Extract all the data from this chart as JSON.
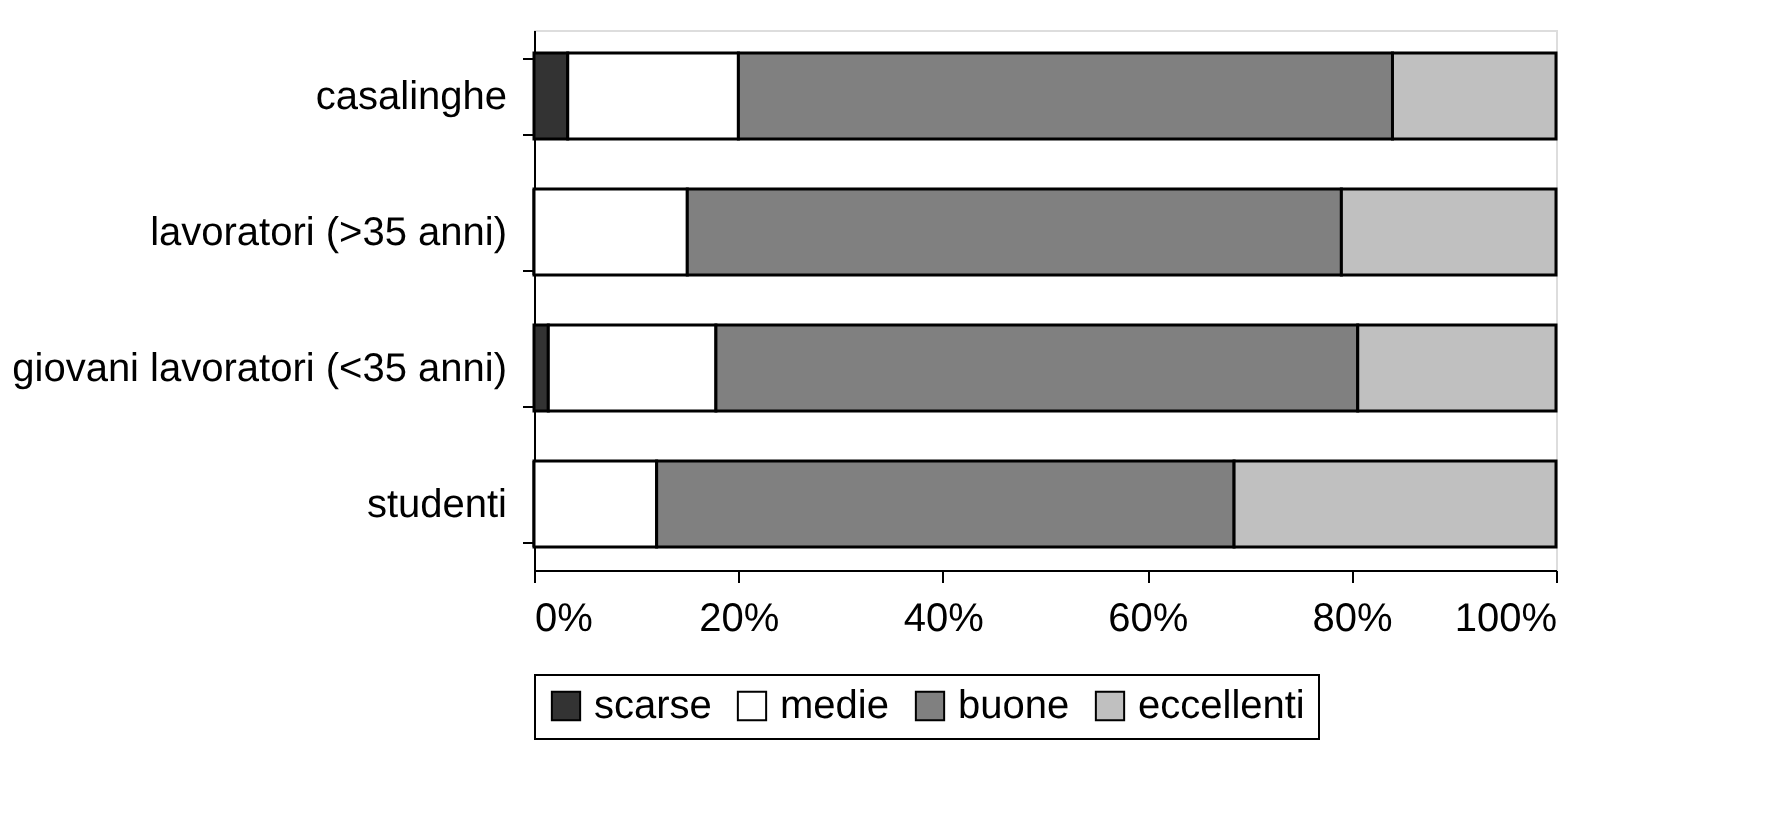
{
  "chart_data": {
    "type": "bar",
    "orientation": "horizontal",
    "stacked": true,
    "categories": [
      "casalinghe",
      "lavoratori (>35 anni)",
      "giovani lavoratori (<35 anni)",
      "studenti"
    ],
    "series": [
      {
        "name": "scarse",
        "color": "#333333",
        "values": [
          3.3,
          0,
          1.4,
          0
        ]
      },
      {
        "name": "medie",
        "color": "#ffffff",
        "values": [
          16.7,
          15,
          16.4,
          12
        ]
      },
      {
        "name": "buone",
        "color": "#808080",
        "values": [
          64,
          64,
          62.8,
          56.5
        ]
      },
      {
        "name": "eccellenti",
        "color": "#c0c0c0",
        "values": [
          16,
          21,
          19.4,
          31.5
        ]
      }
    ],
    "xlim": [
      0,
      100
    ],
    "xticks": [
      {
        "value": 0,
        "label": "0%"
      },
      {
        "value": 20,
        "label": "20%"
      },
      {
        "value": 40,
        "label": "40%"
      },
      {
        "value": 60,
        "label": "60%"
      },
      {
        "value": 80,
        "label": "80%"
      },
      {
        "value": 100,
        "label": "100%"
      }
    ],
    "grid": false,
    "legend": "bottom"
  }
}
